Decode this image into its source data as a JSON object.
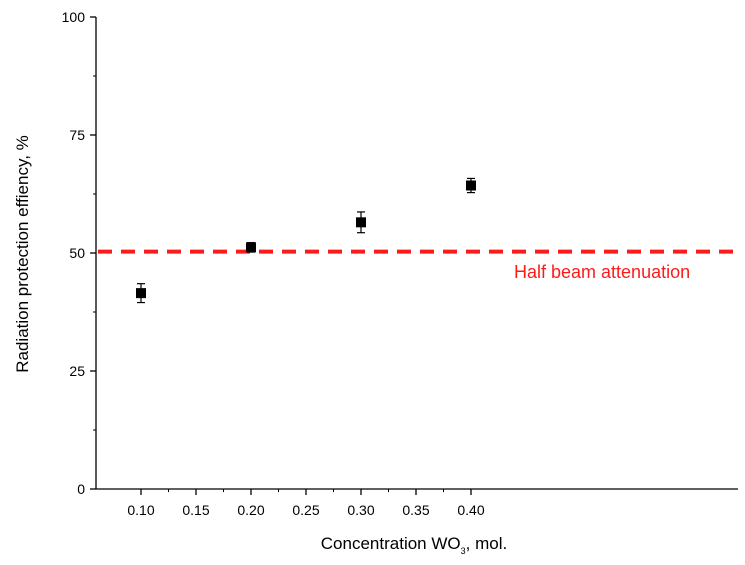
{
  "chart_data": {
    "type": "scatter",
    "xlabel": {
      "main": "Concentration WO",
      "subscript": "3",
      "suffix": ", mol."
    },
    "ylabel": "Radiation protection effiency, %",
    "xlim": [
      0.075,
      0.435
    ],
    "ylim": [
      0,
      100
    ],
    "x_ticks": [
      0.1,
      0.15,
      0.2,
      0.25,
      0.3,
      0.35,
      0.4
    ],
    "x_tick_labels": [
      "0.10",
      "0.15",
      "0.20",
      "0.25",
      "0.30",
      "0.35",
      "0.40"
    ],
    "y_ticks": [
      0,
      25,
      50,
      75,
      100
    ],
    "y_tick_labels": [
      "0",
      "25",
      "50",
      "75",
      "100"
    ],
    "series": [
      {
        "marker": "square",
        "color": "#000000",
        "points": [
          {
            "x": 0.1,
            "y": 41.5,
            "err": 2.0
          },
          {
            "x": 0.2,
            "y": 51.2,
            "err": 1.0
          },
          {
            "x": 0.3,
            "y": 56.5,
            "err": 2.2
          },
          {
            "x": 0.4,
            "y": 64.3,
            "err": 1.5
          }
        ]
      }
    ],
    "reference_line": {
      "y": 50.3,
      "label": "Half beam attenuation",
      "color": "#ff1a1a",
      "style": "dashed"
    },
    "grid": false,
    "legend": "none"
  }
}
